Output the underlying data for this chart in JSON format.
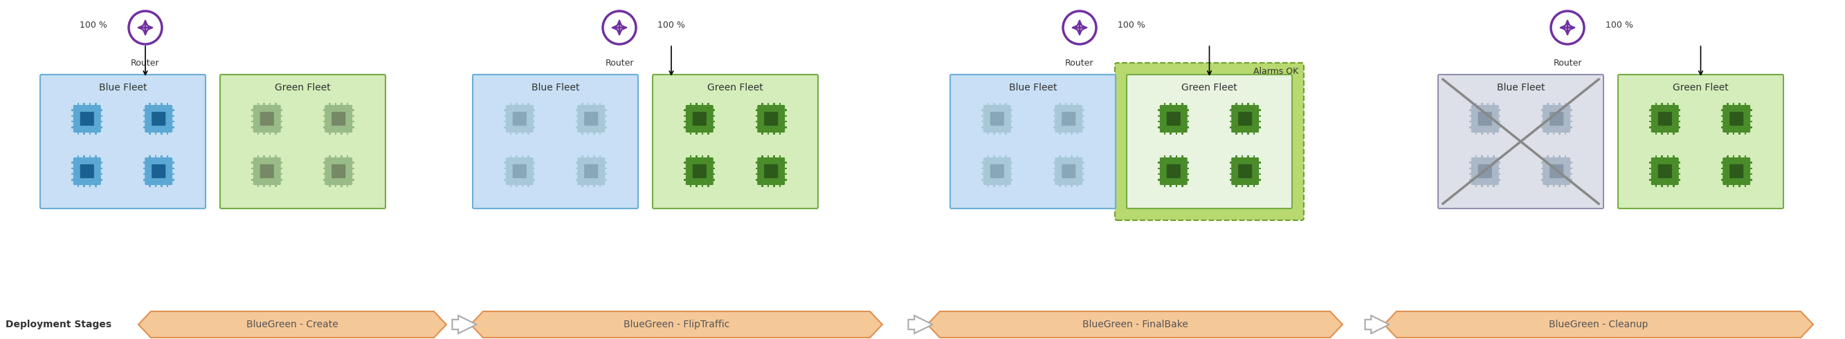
{
  "fig_width": 26.66,
  "fig_height": 4.91,
  "bg_color": "#ffffff",
  "router_color": "#7030A0",
  "blue_fleet_bg": "#c8dff5",
  "blue_fleet_border": "#6baed6",
  "green_fleet_bg": "#d4edba",
  "green_fleet_border": "#74ac44",
  "chip_blue_outer": "#5ba8d4",
  "chip_blue_inner": "#1a6090",
  "chip_green_outer": "#4a8c2a",
  "chip_green_inner": "#2d5a1b",
  "chip_ghost_blue": "#a8c8d8",
  "chip_ghost_blue_inner": "#88a8b8",
  "chip_ghost_green": "#99bb88",
  "chip_ghost_green_inner": "#778866",
  "chip_inactive_outer": "#aab8c8",
  "chip_inactive_inner": "#8898a8",
  "alarms_box_fill": "#b8d870",
  "alarms_box_border": "#70a030",
  "stage_bg": "#f5c898",
  "stage_border": "#e09050",
  "stages": [
    "BlueGreen - Create",
    "BlueGreen - FlipTraffic",
    "BlueGreen - FinalBake",
    "BlueGreen - Cleanup"
  ],
  "label_fontsize": 10,
  "small_fontsize": 9,
  "bold_label": 10
}
